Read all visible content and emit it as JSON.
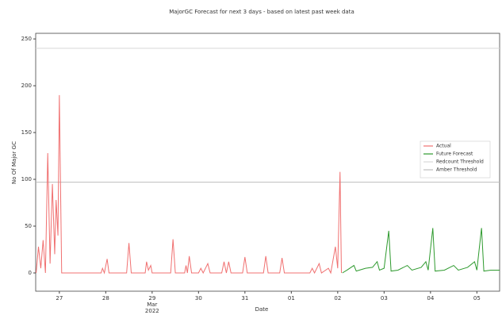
{
  "chart_data": {
    "type": "line",
    "title": "MajorGC Forecast for next 3 days - based on latest past week data",
    "x_label": "Date",
    "y_label": "No Of Major GC",
    "xlim": [
      26.49,
      36.49
    ],
    "ylim": [
      -19.5,
      256
    ],
    "xticks": [
      {
        "value": 27,
        "label": "27"
      },
      {
        "value": 28,
        "label": "28"
      },
      {
        "value": 29,
        "label": "29\nMar\n2022"
      },
      {
        "value": 30,
        "label": "30"
      },
      {
        "value": 31,
        "label": "31"
      },
      {
        "value": 32,
        "label": "01"
      },
      {
        "value": 33,
        "label": "02"
      },
      {
        "value": 34,
        "label": "03"
      },
      {
        "value": 35,
        "label": "04"
      },
      {
        "value": 36,
        "label": "05"
      }
    ],
    "yticks": [
      0,
      50,
      100,
      150,
      200,
      250
    ],
    "legend": "right",
    "series": [
      {
        "name": "Actual",
        "color": "#f07070",
        "x": [
          26.5,
          26.55,
          26.6,
          26.65,
          26.7,
          26.75,
          26.8,
          26.85,
          26.9,
          26.93,
          26.97,
          27.0,
          27.05,
          27.9,
          27.93,
          27.97,
          28.03,
          28.07,
          28.45,
          28.5,
          28.55,
          28.85,
          28.88,
          28.92,
          28.97,
          29.0,
          29.4,
          29.45,
          29.5,
          29.7,
          29.73,
          29.76,
          29.8,
          29.85,
          30.0,
          30.05,
          30.1,
          30.2,
          30.25,
          30.5,
          30.55,
          30.6,
          30.65,
          30.7,
          30.95,
          31.0,
          31.05,
          31.4,
          31.45,
          31.5,
          31.75,
          31.8,
          31.85,
          32.4,
          32.45,
          32.5,
          32.6,
          32.65,
          32.8,
          32.85,
          32.95,
          33.0,
          33.05,
          33.08
        ],
        "values": [
          0,
          28,
          5,
          35,
          0,
          128,
          10,
          95,
          20,
          78,
          40,
          190,
          0,
          0,
          5,
          0,
          15,
          0,
          0,
          32,
          0,
          0,
          12,
          3,
          8,
          0,
          0,
          36,
          0,
          0,
          8,
          0,
          18,
          0,
          0,
          5,
          0,
          10,
          0,
          0,
          12,
          0,
          12,
          0,
          0,
          17,
          0,
          0,
          18,
          0,
          0,
          16,
          0,
          0,
          5,
          0,
          10,
          0,
          5,
          0,
          28,
          5,
          108,
          0
        ]
      },
      {
        "name": "Future Forecast",
        "color": "#2e9a2e",
        "x": [
          33.1,
          33.2,
          33.35,
          33.4,
          33.6,
          33.75,
          33.85,
          33.9,
          34.0,
          34.1,
          34.15,
          34.3,
          34.5,
          34.6,
          34.8,
          34.9,
          34.95,
          35.05,
          35.1,
          35.3,
          35.5,
          35.6,
          35.8,
          35.95,
          36.0,
          36.1,
          36.15,
          36.3,
          36.49
        ],
        "values": [
          0,
          3,
          8,
          2,
          5,
          6,
          12,
          3,
          5,
          45,
          2,
          3,
          8,
          3,
          6,
          12,
          3,
          48,
          2,
          3,
          8,
          3,
          6,
          12,
          3,
          48,
          2,
          3,
          3
        ]
      }
    ],
    "thresholds": [
      {
        "name": "Redcount Threshold",
        "value": 240,
        "color": "#d8d8d8"
      },
      {
        "name": "Amber Threshold",
        "value": 97,
        "color": "#bdbdbd"
      }
    ]
  }
}
